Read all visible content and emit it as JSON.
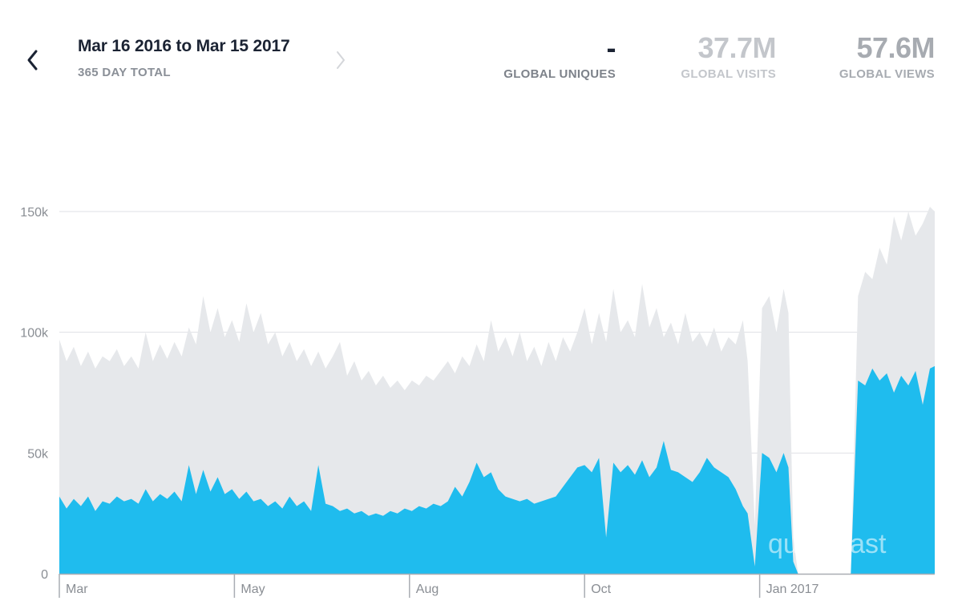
{
  "nav": {
    "range_title": "Mar 16 2016 to Mar 15 2017",
    "range_subtitle": "365 DAY TOTAL"
  },
  "metrics": {
    "uniques": {
      "value": "-",
      "label": "GLOBAL UNIQUES"
    },
    "visits": {
      "value": "37.7M",
      "label": "GLOBAL VISITS"
    },
    "views": {
      "value": "57.6M",
      "label": "GLOBAL VIEWS"
    }
  },
  "watermark": "quantcast",
  "colors": {
    "visits_fill": "#1fbcee",
    "views_fill": "#e6e8eb",
    "grid": "#dfe1e4",
    "axis": "#a9adb3"
  },
  "chart_data": {
    "type": "area",
    "title": "",
    "xlabel": "",
    "ylabel": "",
    "ylim": [
      0,
      150000
    ],
    "yticks": [
      0,
      50000,
      100000,
      150000
    ],
    "ytick_labels": [
      "0",
      "50k",
      "100k",
      "150k"
    ],
    "xticks": [
      {
        "label": "Mar",
        "day": 0
      },
      {
        "label": "May",
        "day": 73
      },
      {
        "label": "Aug",
        "day": 146
      },
      {
        "label": "Oct",
        "day": 219
      },
      {
        "label": "Jan 2017",
        "day": 292
      }
    ],
    "days": 366,
    "series": [
      {
        "name": "Global Views",
        "points": [
          [
            0,
            97000
          ],
          [
            3,
            88000
          ],
          [
            6,
            94000
          ],
          [
            9,
            86000
          ],
          [
            12,
            92000
          ],
          [
            15,
            85000
          ],
          [
            18,
            90000
          ],
          [
            21,
            88000
          ],
          [
            24,
            93000
          ],
          [
            27,
            86000
          ],
          [
            30,
            90000
          ],
          [
            33,
            85000
          ],
          [
            36,
            100000
          ],
          [
            39,
            88000
          ],
          [
            42,
            95000
          ],
          [
            45,
            89000
          ],
          [
            48,
            96000
          ],
          [
            51,
            90000
          ],
          [
            54,
            102000
          ],
          [
            57,
            95000
          ],
          [
            60,
            115000
          ],
          [
            63,
            100000
          ],
          [
            66,
            110000
          ],
          [
            69,
            98000
          ],
          [
            72,
            105000
          ],
          [
            75,
            96000
          ],
          [
            78,
            112000
          ],
          [
            81,
            100000
          ],
          [
            84,
            108000
          ],
          [
            87,
            95000
          ],
          [
            90,
            100000
          ],
          [
            93,
            90000
          ],
          [
            96,
            96000
          ],
          [
            99,
            88000
          ],
          [
            102,
            93000
          ],
          [
            105,
            86000
          ],
          [
            108,
            92000
          ],
          [
            111,
            85000
          ],
          [
            114,
            90000
          ],
          [
            117,
            96000
          ],
          [
            120,
            82000
          ],
          [
            123,
            88000
          ],
          [
            126,
            80000
          ],
          [
            129,
            84000
          ],
          [
            132,
            78000
          ],
          [
            135,
            82000
          ],
          [
            138,
            77000
          ],
          [
            141,
            80000
          ],
          [
            144,
            76000
          ],
          [
            147,
            80000
          ],
          [
            150,
            78000
          ],
          [
            153,
            82000
          ],
          [
            156,
            80000
          ],
          [
            159,
            84000
          ],
          [
            162,
            88000
          ],
          [
            165,
            83000
          ],
          [
            168,
            90000
          ],
          [
            171,
            86000
          ],
          [
            174,
            95000
          ],
          [
            177,
            88000
          ],
          [
            180,
            105000
          ],
          [
            183,
            92000
          ],
          [
            186,
            98000
          ],
          [
            189,
            90000
          ],
          [
            192,
            100000
          ],
          [
            195,
            88000
          ],
          [
            198,
            94000
          ],
          [
            201,
            86000
          ],
          [
            204,
            96000
          ],
          [
            207,
            88000
          ],
          [
            210,
            98000
          ],
          [
            213,
            92000
          ],
          [
            216,
            100000
          ],
          [
            219,
            110000
          ],
          [
            222,
            95000
          ],
          [
            225,
            108000
          ],
          [
            228,
            96000
          ],
          [
            231,
            118000
          ],
          [
            234,
            100000
          ],
          [
            237,
            105000
          ],
          [
            240,
            98000
          ],
          [
            243,
            120000
          ],
          [
            246,
            102000
          ],
          [
            249,
            110000
          ],
          [
            252,
            98000
          ],
          [
            255,
            104000
          ],
          [
            258,
            95000
          ],
          [
            261,
            108000
          ],
          [
            264,
            96000
          ],
          [
            267,
            100000
          ],
          [
            270,
            94000
          ],
          [
            273,
            102000
          ],
          [
            276,
            92000
          ],
          [
            279,
            98000
          ],
          [
            282,
            95000
          ],
          [
            285,
            105000
          ],
          [
            287,
            88000
          ],
          [
            290,
            20000
          ],
          [
            293,
            110000
          ],
          [
            296,
            115000
          ],
          [
            299,
            100000
          ],
          [
            302,
            118000
          ],
          [
            304,
            108000
          ],
          [
            306,
            15000
          ],
          [
            308,
            0
          ],
          [
            330,
            0
          ],
          [
            333,
            115000
          ],
          [
            336,
            125000
          ],
          [
            339,
            122000
          ],
          [
            342,
            135000
          ],
          [
            345,
            128000
          ],
          [
            348,
            148000
          ],
          [
            351,
            138000
          ],
          [
            354,
            150000
          ],
          [
            357,
            140000
          ],
          [
            360,
            145000
          ],
          [
            363,
            152000
          ],
          [
            365,
            150000
          ]
        ]
      },
      {
        "name": "Global Visits",
        "points": [
          [
            0,
            32000
          ],
          [
            3,
            27000
          ],
          [
            6,
            31000
          ],
          [
            9,
            28000
          ],
          [
            12,
            32000
          ],
          [
            15,
            26000
          ],
          [
            18,
            30000
          ],
          [
            21,
            29000
          ],
          [
            24,
            32000
          ],
          [
            27,
            30000
          ],
          [
            30,
            31000
          ],
          [
            33,
            29000
          ],
          [
            36,
            35000
          ],
          [
            39,
            30000
          ],
          [
            42,
            33000
          ],
          [
            45,
            31000
          ],
          [
            48,
            34000
          ],
          [
            51,
            30000
          ],
          [
            54,
            45000
          ],
          [
            57,
            33000
          ],
          [
            60,
            43000
          ],
          [
            63,
            34000
          ],
          [
            66,
            40000
          ],
          [
            69,
            33000
          ],
          [
            72,
            35000
          ],
          [
            75,
            31000
          ],
          [
            78,
            34000
          ],
          [
            81,
            30000
          ],
          [
            84,
            31000
          ],
          [
            87,
            28000
          ],
          [
            90,
            30000
          ],
          [
            93,
            27000
          ],
          [
            96,
            32000
          ],
          [
            99,
            28000
          ],
          [
            102,
            30000
          ],
          [
            105,
            26000
          ],
          [
            108,
            45000
          ],
          [
            111,
            29000
          ],
          [
            114,
            28000
          ],
          [
            117,
            26000
          ],
          [
            120,
            27000
          ],
          [
            123,
            25000
          ],
          [
            126,
            26000
          ],
          [
            129,
            24000
          ],
          [
            132,
            25000
          ],
          [
            135,
            24000
          ],
          [
            138,
            26000
          ],
          [
            141,
            25000
          ],
          [
            144,
            27000
          ],
          [
            147,
            26000
          ],
          [
            150,
            28000
          ],
          [
            153,
            27000
          ],
          [
            156,
            29000
          ],
          [
            159,
            28000
          ],
          [
            162,
            30000
          ],
          [
            165,
            36000
          ],
          [
            168,
            32000
          ],
          [
            171,
            38000
          ],
          [
            174,
            46000
          ],
          [
            177,
            40000
          ],
          [
            180,
            42000
          ],
          [
            183,
            35000
          ],
          [
            186,
            32000
          ],
          [
            189,
            31000
          ],
          [
            192,
            30000
          ],
          [
            195,
            31000
          ],
          [
            198,
            29000
          ],
          [
            201,
            30000
          ],
          [
            204,
            31000
          ],
          [
            207,
            32000
          ],
          [
            210,
            36000
          ],
          [
            213,
            40000
          ],
          [
            216,
            44000
          ],
          [
            219,
            45000
          ],
          [
            222,
            42000
          ],
          [
            225,
            48000
          ],
          [
            228,
            15000
          ],
          [
            231,
            46000
          ],
          [
            234,
            42000
          ],
          [
            237,
            45000
          ],
          [
            240,
            41000
          ],
          [
            243,
            47000
          ],
          [
            246,
            40000
          ],
          [
            249,
            44000
          ],
          [
            252,
            55000
          ],
          [
            255,
            43000
          ],
          [
            258,
            42000
          ],
          [
            261,
            40000
          ],
          [
            264,
            38000
          ],
          [
            267,
            42000
          ],
          [
            270,
            48000
          ],
          [
            273,
            44000
          ],
          [
            276,
            42000
          ],
          [
            279,
            40000
          ],
          [
            282,
            35000
          ],
          [
            285,
            28000
          ],
          [
            287,
            25000
          ],
          [
            290,
            3000
          ],
          [
            293,
            50000
          ],
          [
            296,
            48000
          ],
          [
            299,
            42000
          ],
          [
            302,
            50000
          ],
          [
            304,
            44000
          ],
          [
            306,
            5000
          ],
          [
            308,
            0
          ],
          [
            330,
            0
          ],
          [
            333,
            80000
          ],
          [
            336,
            78000
          ],
          [
            339,
            85000
          ],
          [
            342,
            80000
          ],
          [
            345,
            83000
          ],
          [
            348,
            75000
          ],
          [
            351,
            82000
          ],
          [
            354,
            78000
          ],
          [
            357,
            84000
          ],
          [
            360,
            70000
          ],
          [
            363,
            85000
          ],
          [
            365,
            86000
          ]
        ]
      }
    ]
  }
}
